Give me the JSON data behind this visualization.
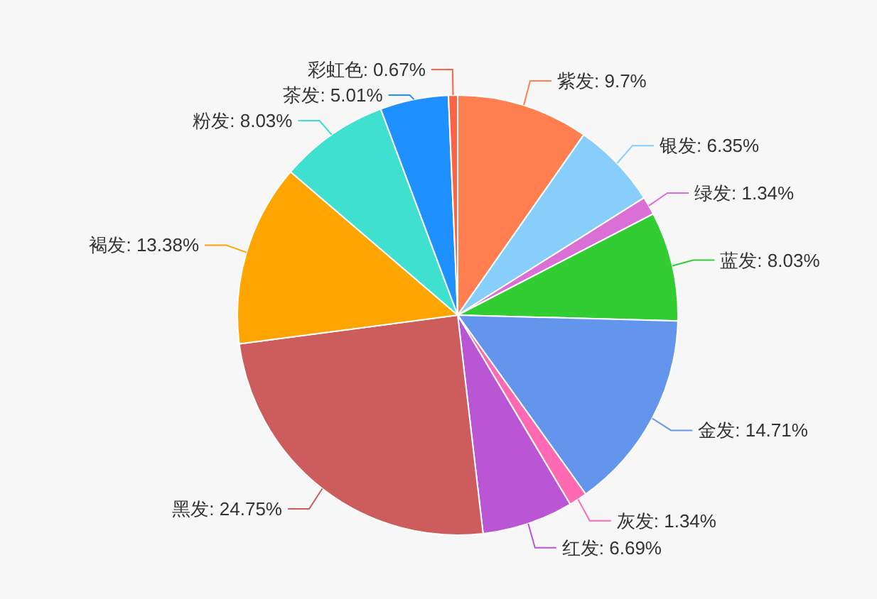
{
  "chart_data": {
    "type": "pie",
    "categories": [
      "紫发",
      "银发",
      "绿发",
      "蓝发",
      "金发",
      "灰发",
      "红发",
      "黑发",
      "褐发",
      "粉发",
      "茶发",
      "彩虹色"
    ],
    "values": [
      9.7,
      6.35,
      1.34,
      8.03,
      14.71,
      1.34,
      6.69,
      24.75,
      13.38,
      8.03,
      5.01,
      0.67
    ],
    "value_labels": [
      ": 9.7%",
      ": 6.35%",
      ": 1.34%",
      ": 8.03%",
      ": 14.71%",
      ": 1.34%",
      ": 6.69%",
      ": 24.75%",
      ": 13.38%",
      ": 8.03%",
      ": 5.01%",
      ": 0.67%"
    ],
    "colors": [
      "#ff7f50",
      "#87cefa",
      "#da70d6",
      "#32cd32",
      "#6495ed",
      "#ff69b4",
      "#ba55d3",
      "#cd5c5c",
      "#ffa500",
      "#40e0d0",
      "#1e90ff",
      "#ff6347"
    ]
  }
}
